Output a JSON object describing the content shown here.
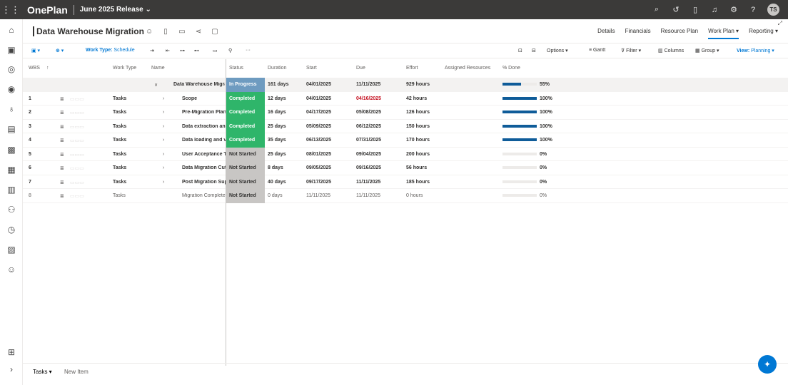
{
  "topbar": {
    "app_name": "OnePlan",
    "release": "June 2025 Release ⌄",
    "avatar_initials": "TS"
  },
  "project": {
    "title": "Data Warehouse Migration",
    "tabs": [
      "Details",
      "Financials",
      "Resource Plan",
      "Work Plan ▾",
      "Reporting ▾"
    ],
    "active_tab": 3
  },
  "toolbar": {
    "work_type_label": "Work Type:",
    "work_type_value": "Schedule",
    "options": "Options ▾",
    "gantt": "Gantt",
    "filter": "Filter ▾",
    "columns": "Columns",
    "group": "Group ▾",
    "view_label": "View:",
    "view_value": "Planning ▾"
  },
  "columns": {
    "wbs": "WBS",
    "work_type": "Work Type",
    "name": "Name",
    "status": "Status",
    "duration": "Duration",
    "start": "Start",
    "due": "Due",
    "effort": "Effort",
    "assigned": "Assigned Resources",
    "pct_done": "% Done"
  },
  "rows": [
    {
      "wbs": "",
      "type": "",
      "name": "Data Warehouse Migra",
      "status": "In Progress",
      "duration": "161 days",
      "start": "04/01/2025",
      "due": "11/11/2025",
      "effort": "929 hours",
      "pct": "55%",
      "progress": 0.55
    },
    {
      "wbs": "1",
      "type": "Tasks",
      "name": "Scope",
      "status": "Completed",
      "duration": "12 days",
      "start": "04/01/2025",
      "due": "04/16/2025",
      "effort": "42 hours",
      "pct": "100%",
      "progress": 1
    },
    {
      "wbs": "2",
      "type": "Tasks",
      "name": "Pre-Migration Plan",
      "status": "Completed",
      "duration": "16 days",
      "start": "04/17/2025",
      "due": "05/08/2025",
      "effort": "126 hours",
      "pct": "100%",
      "progress": 1
    },
    {
      "wbs": "3",
      "type": "Tasks",
      "name": "Data extraction and",
      "status": "Completed",
      "duration": "25 days",
      "start": "05/09/2025",
      "due": "06/12/2025",
      "effort": "150 hours",
      "pct": "100%",
      "progress": 1
    },
    {
      "wbs": "4",
      "type": "Tasks",
      "name": "Data loading and v",
      "status": "Completed",
      "duration": "35 days",
      "start": "06/13/2025",
      "due": "07/31/2025",
      "effort": "170 hours",
      "pct": "100%",
      "progress": 1
    },
    {
      "wbs": "5",
      "type": "Tasks",
      "name": "User Acceptance Te",
      "status": "Not Started",
      "duration": "25 days",
      "start": "08/01/2025",
      "due": "09/04/2025",
      "effort": "200 hours",
      "pct": "0%",
      "progress": 0
    },
    {
      "wbs": "6",
      "type": "Tasks",
      "name": "Data Migration Cut",
      "status": "Not Started",
      "duration": "8 days",
      "start": "09/05/2025",
      "due": "09/16/2025",
      "effort": "56 hours",
      "pct": "0%",
      "progress": 0
    },
    {
      "wbs": "7",
      "type": "Tasks",
      "name": "Post Migration Sup",
      "status": "Not Started",
      "duration": "40 days",
      "start": "09/17/2025",
      "due": "11/11/2025",
      "effort": "185 hours",
      "pct": "0%",
      "progress": 0
    },
    {
      "wbs": "8",
      "type": "Tasks",
      "name": "Migration Complete",
      "status": "Not Started",
      "duration": "0 days",
      "start": "11/11/2025",
      "due": "11/11/2025",
      "effort": "0 hours",
      "pct": "0%",
      "progress": 0
    }
  ],
  "footer": {
    "tasks": "Tasks ▾",
    "new_item": "New Item"
  },
  "colors": {
    "accent": "#0078d4",
    "overdue": "#c50f1f"
  }
}
